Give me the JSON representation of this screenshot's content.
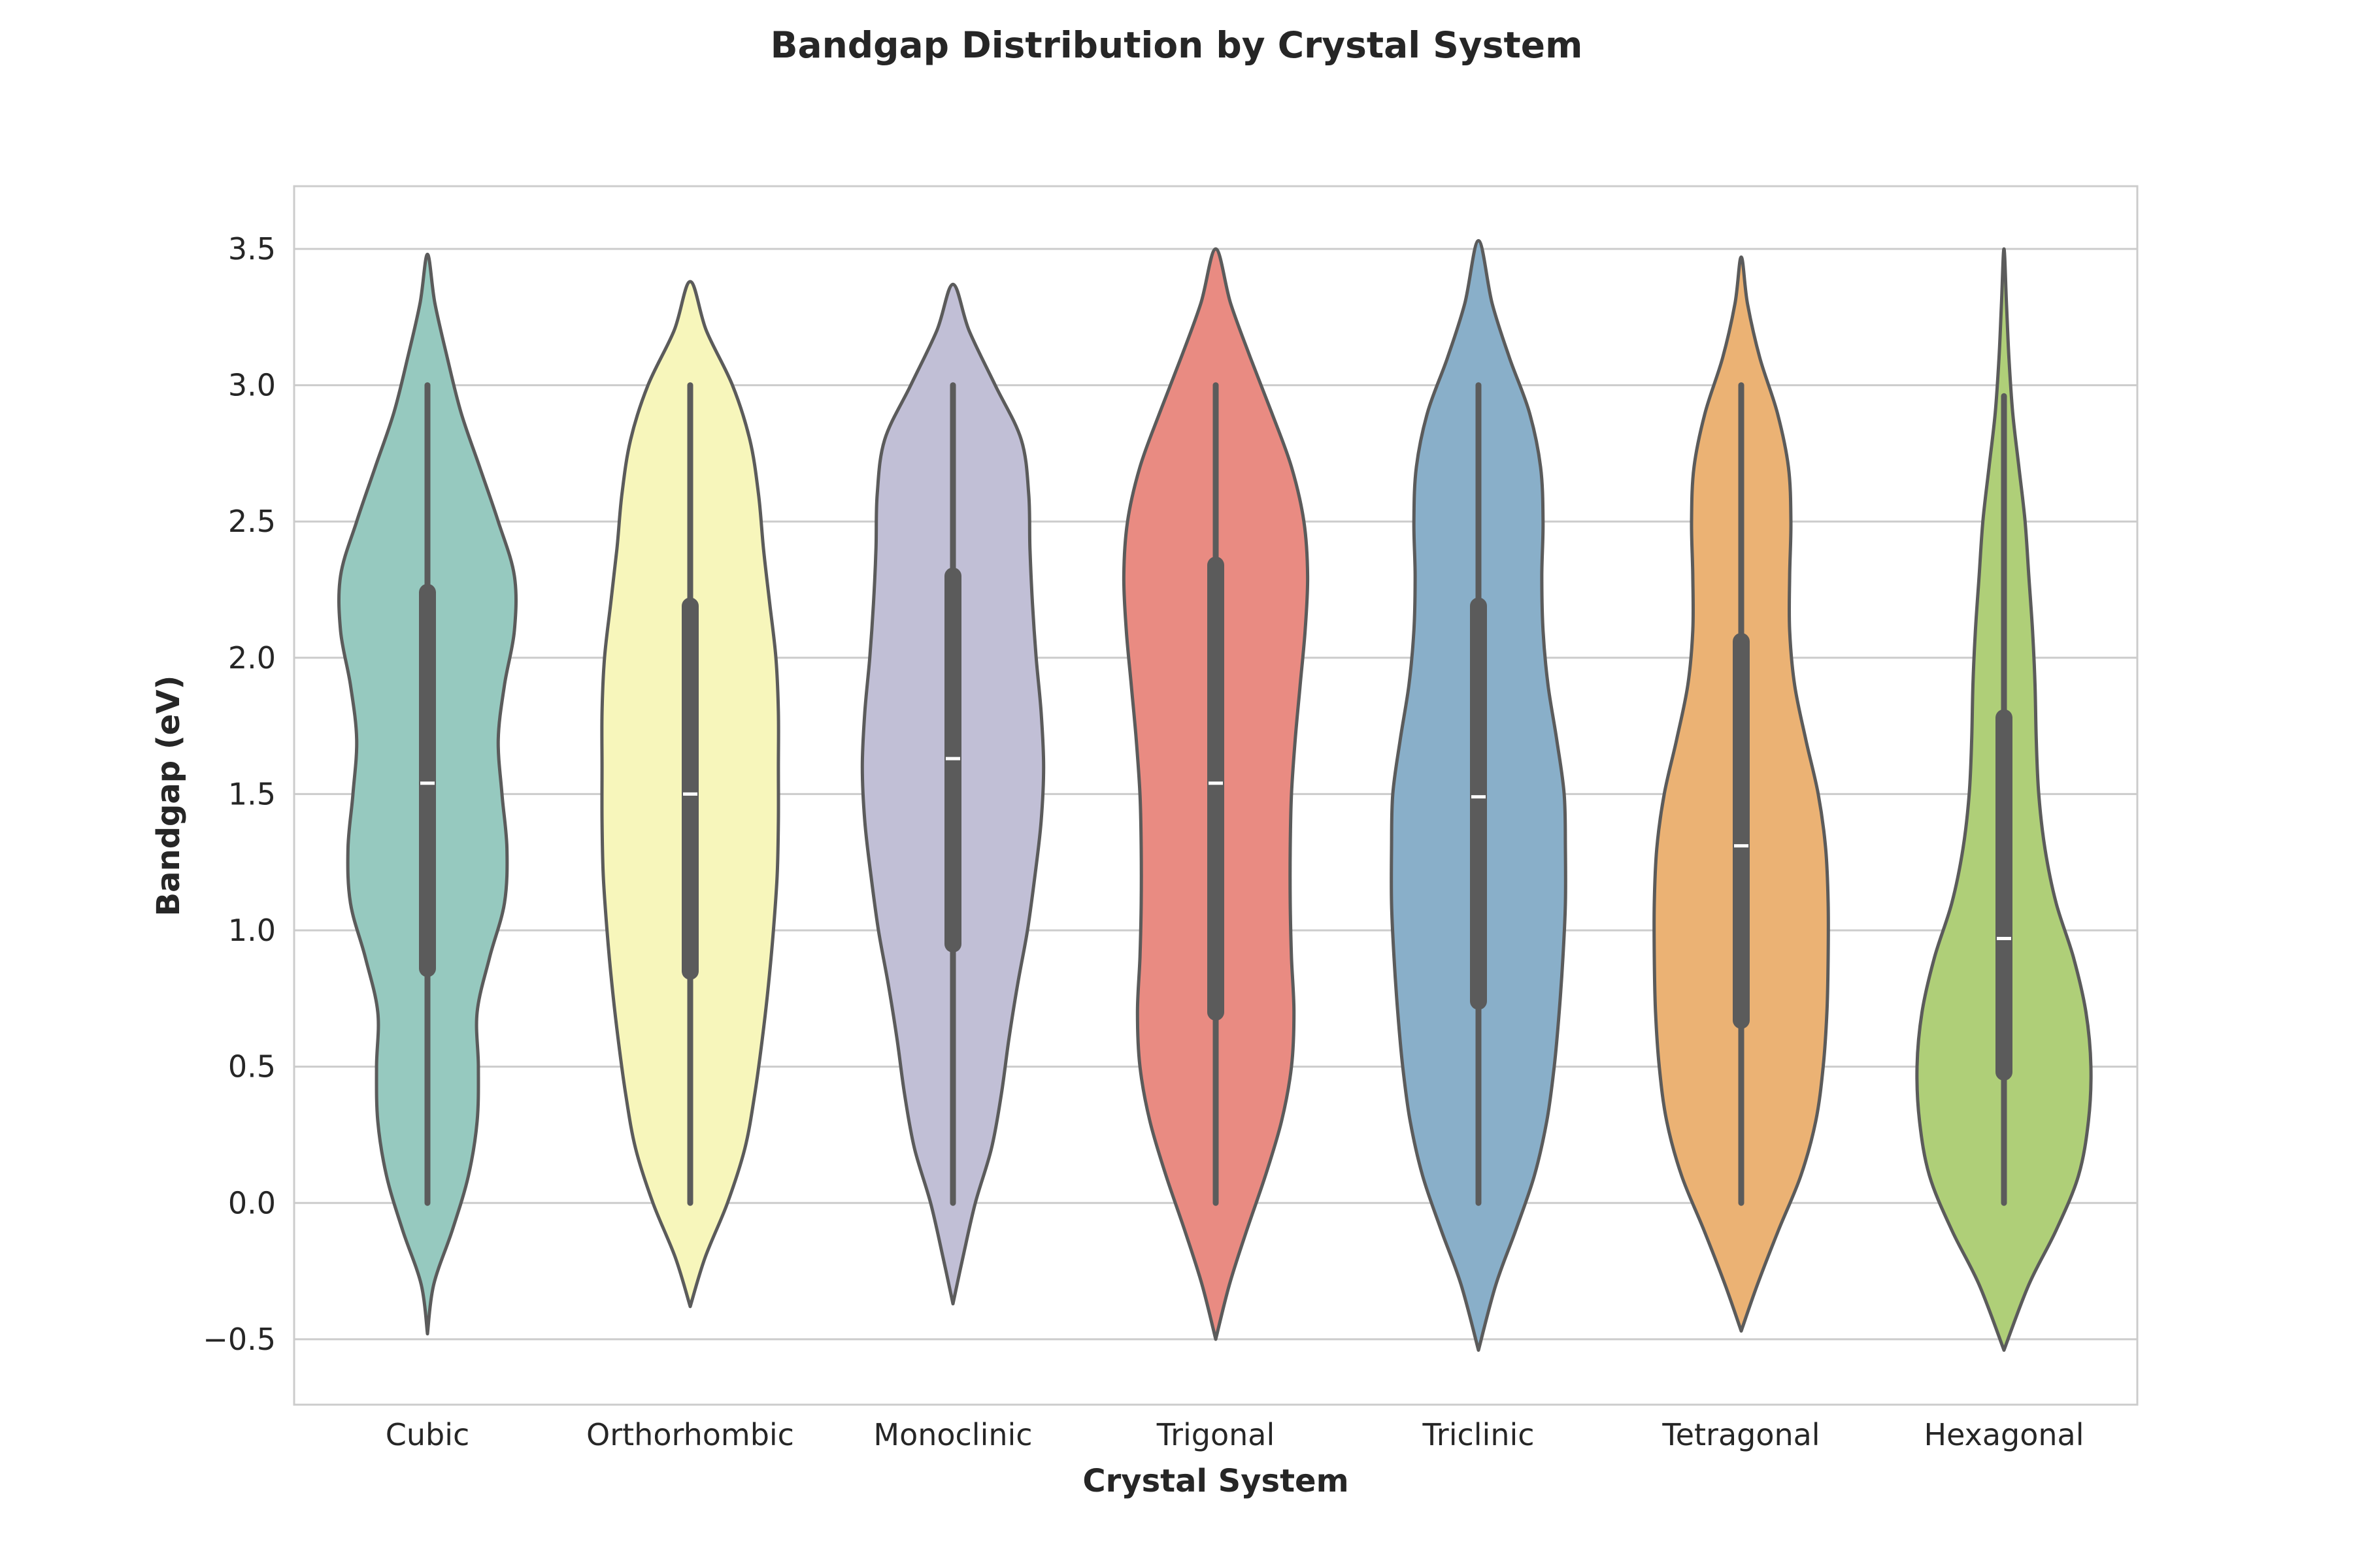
{
  "chart_data": {
    "type": "violin",
    "title": "Bandgap Distribution by Crystal System",
    "xlabel": "Crystal System",
    "ylabel": "Bandgap (eV)",
    "ylim": [
      -0.74,
      3.73
    ],
    "yticks": [
      -0.5,
      0.0,
      0.5,
      1.0,
      1.5,
      2.0,
      2.5,
      3.0,
      3.5
    ],
    "ytick_labels": [
      "−0.5",
      "0.0",
      "0.5",
      "1.0",
      "1.5",
      "2.0",
      "2.5",
      "3.0",
      "3.5"
    ],
    "grid": "horizontal",
    "categories": [
      "Cubic",
      "Orthorhombic",
      "Monoclinic",
      "Trigonal",
      "Triclinic",
      "Tetragonal",
      "Hexagonal"
    ],
    "colors": [
      "#96c9bf",
      "#f7f6bb",
      "#c1bfd6",
      "#e98b82",
      "#89afc9",
      "#ebb274",
      "#afcf78"
    ],
    "edge_color": "#5b5b5b",
    "violins": [
      {
        "name": "Cubic",
        "min": 0.0,
        "q1": 0.86,
        "median": 1.54,
        "q3": 2.24,
        "max": 3.0,
        "kde_min": -0.48,
        "kde_max": 3.48,
        "density": [
          [
            -0.48,
            0.0
          ],
          [
            -0.3,
            0.05
          ],
          [
            -0.1,
            0.2
          ],
          [
            0.1,
            0.33
          ],
          [
            0.3,
            0.4
          ],
          [
            0.5,
            0.41
          ],
          [
            0.7,
            0.4
          ],
          [
            0.9,
            0.5
          ],
          [
            1.1,
            0.62
          ],
          [
            1.3,
            0.64
          ],
          [
            1.5,
            0.6
          ],
          [
            1.7,
            0.57
          ],
          [
            1.9,
            0.62
          ],
          [
            2.1,
            0.7
          ],
          [
            2.3,
            0.7
          ],
          [
            2.5,
            0.57
          ],
          [
            2.7,
            0.42
          ],
          [
            2.9,
            0.27
          ],
          [
            3.1,
            0.16
          ],
          [
            3.3,
            0.06
          ],
          [
            3.48,
            0.0
          ]
        ]
      },
      {
        "name": "Orthorhombic",
        "min": 0.0,
        "q1": 0.85,
        "median": 1.5,
        "q3": 2.19,
        "max": 3.0,
        "kde_min": -0.38,
        "kde_max": 3.38,
        "density": [
          [
            -0.38,
            0.0
          ],
          [
            -0.2,
            0.12
          ],
          [
            0.0,
            0.3
          ],
          [
            0.2,
            0.44
          ],
          [
            0.4,
            0.52
          ],
          [
            0.6,
            0.58
          ],
          [
            0.8,
            0.63
          ],
          [
            1.0,
            0.67
          ],
          [
            1.2,
            0.7
          ],
          [
            1.4,
            0.71
          ],
          [
            1.6,
            0.71
          ],
          [
            1.8,
            0.71
          ],
          [
            2.0,
            0.69
          ],
          [
            2.2,
            0.64
          ],
          [
            2.4,
            0.59
          ],
          [
            2.6,
            0.55
          ],
          [
            2.8,
            0.48
          ],
          [
            3.0,
            0.34
          ],
          [
            3.2,
            0.13
          ],
          [
            3.38,
            0.0
          ]
        ]
      },
      {
        "name": "Monoclinic",
        "min": 0.0,
        "q1": 0.95,
        "median": 1.63,
        "q3": 2.3,
        "max": 3.0,
        "kde_min": -0.37,
        "kde_max": 3.37,
        "density": [
          [
            -0.37,
            0.0
          ],
          [
            -0.2,
            0.08
          ],
          [
            0.0,
            0.18
          ],
          [
            0.2,
            0.31
          ],
          [
            0.4,
            0.39
          ],
          [
            0.6,
            0.45
          ],
          [
            0.8,
            0.52
          ],
          [
            1.0,
            0.6
          ],
          [
            1.2,
            0.66
          ],
          [
            1.4,
            0.71
          ],
          [
            1.6,
            0.73
          ],
          [
            1.8,
            0.71
          ],
          [
            2.0,
            0.67
          ],
          [
            2.2,
            0.64
          ],
          [
            2.4,
            0.62
          ],
          [
            2.6,
            0.61
          ],
          [
            2.8,
            0.55
          ],
          [
            3.0,
            0.34
          ],
          [
            3.2,
            0.13
          ],
          [
            3.37,
            0.0
          ]
        ]
      },
      {
        "name": "Trigonal",
        "min": 0.0,
        "q1": 0.7,
        "median": 1.54,
        "q3": 2.34,
        "max": 3.0,
        "kde_min": -0.5,
        "kde_max": 3.5,
        "density": [
          [
            -0.5,
            0.0
          ],
          [
            -0.3,
            0.11
          ],
          [
            -0.1,
            0.25
          ],
          [
            0.1,
            0.4
          ],
          [
            0.3,
            0.53
          ],
          [
            0.5,
            0.61
          ],
          [
            0.7,
            0.63
          ],
          [
            0.9,
            0.61
          ],
          [
            1.1,
            0.6
          ],
          [
            1.3,
            0.6
          ],
          [
            1.5,
            0.61
          ],
          [
            1.7,
            0.64
          ],
          [
            1.9,
            0.68
          ],
          [
            2.1,
            0.72
          ],
          [
            2.3,
            0.74
          ],
          [
            2.5,
            0.71
          ],
          [
            2.7,
            0.61
          ],
          [
            2.9,
            0.45
          ],
          [
            3.1,
            0.28
          ],
          [
            3.3,
            0.12
          ],
          [
            3.5,
            0.0
          ]
        ]
      },
      {
        "name": "Triclinic",
        "min": 0.0,
        "q1": 0.74,
        "median": 1.49,
        "q3": 2.19,
        "max": 3.0,
        "kde_min": -0.54,
        "kde_max": 3.53,
        "density": [
          [
            -0.54,
            0.0
          ],
          [
            -0.3,
            0.14
          ],
          [
            -0.1,
            0.3
          ],
          [
            0.1,
            0.45
          ],
          [
            0.3,
            0.55
          ],
          [
            0.5,
            0.61
          ],
          [
            0.7,
            0.65
          ],
          [
            0.9,
            0.68
          ],
          [
            1.1,
            0.7
          ],
          [
            1.3,
            0.7
          ],
          [
            1.5,
            0.69
          ],
          [
            1.7,
            0.63
          ],
          [
            1.9,
            0.56
          ],
          [
            2.1,
            0.52
          ],
          [
            2.3,
            0.51
          ],
          [
            2.5,
            0.52
          ],
          [
            2.7,
            0.5
          ],
          [
            2.9,
            0.41
          ],
          [
            3.1,
            0.25
          ],
          [
            3.3,
            0.11
          ],
          [
            3.53,
            0.0
          ]
        ]
      },
      {
        "name": "Tetragonal",
        "min": 0.0,
        "q1": 0.67,
        "median": 1.31,
        "q3": 2.06,
        "max": 3.0,
        "kde_min": -0.47,
        "kde_max": 3.47,
        "density": [
          [
            -0.47,
            0.0
          ],
          [
            -0.3,
            0.13
          ],
          [
            -0.1,
            0.3
          ],
          [
            0.1,
            0.48
          ],
          [
            0.3,
            0.6
          ],
          [
            0.5,
            0.66
          ],
          [
            0.7,
            0.69
          ],
          [
            0.9,
            0.7
          ],
          [
            1.1,
            0.7
          ],
          [
            1.3,
            0.68
          ],
          [
            1.5,
            0.62
          ],
          [
            1.7,
            0.52
          ],
          [
            1.9,
            0.43
          ],
          [
            2.1,
            0.39
          ],
          [
            2.3,
            0.39
          ],
          [
            2.5,
            0.4
          ],
          [
            2.7,
            0.38
          ],
          [
            2.9,
            0.29
          ],
          [
            3.1,
            0.15
          ],
          [
            3.3,
            0.05
          ],
          [
            3.47,
            0.0
          ]
        ]
      },
      {
        "name": "Hexagonal",
        "min": 0.0,
        "q1": 0.48,
        "median": 0.97,
        "q3": 1.78,
        "max": 2.96,
        "kde_min": -0.54,
        "kde_max": 3.5,
        "density": [
          [
            -0.54,
            0.0
          ],
          [
            -0.3,
            0.2
          ],
          [
            -0.1,
            0.42
          ],
          [
            0.1,
            0.6
          ],
          [
            0.3,
            0.68
          ],
          [
            0.5,
            0.7
          ],
          [
            0.7,
            0.66
          ],
          [
            0.9,
            0.56
          ],
          [
            1.1,
            0.42
          ],
          [
            1.3,
            0.33
          ],
          [
            1.5,
            0.28
          ],
          [
            1.7,
            0.26
          ],
          [
            1.9,
            0.25
          ],
          [
            2.1,
            0.23
          ],
          [
            2.3,
            0.2
          ],
          [
            2.5,
            0.17
          ],
          [
            2.7,
            0.12
          ],
          [
            2.9,
            0.07
          ],
          [
            3.1,
            0.04
          ],
          [
            3.3,
            0.02
          ],
          [
            3.5,
            0.0
          ]
        ]
      }
    ]
  }
}
